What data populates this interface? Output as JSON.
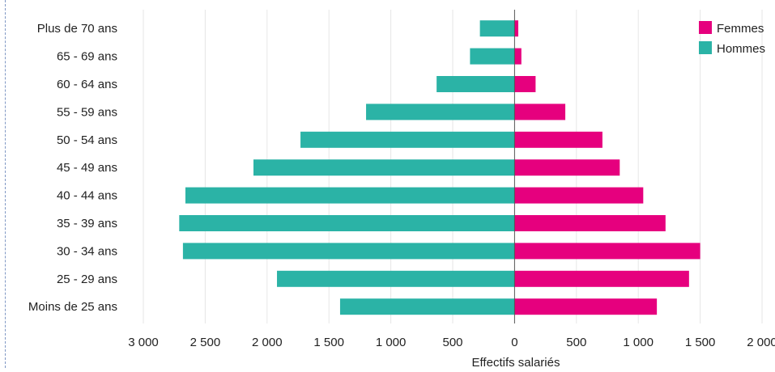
{
  "chart_data": {
    "type": "bar",
    "orientation": "horizontal-population-pyramid",
    "categories": [
      "Plus de 70 ans",
      "65 - 69 ans",
      "60 - 64 ans",
      "55 - 59 ans",
      "50 - 54 ans",
      "45 - 49 ans",
      "40 - 44 ans",
      "35 - 39 ans",
      "30 - 34 ans",
      "25 - 29 ans",
      "Moins de 25 ans"
    ],
    "series": [
      {
        "name": "Femmes",
        "color": "#e6007e",
        "values": [
          30,
          55,
          170,
          410,
          710,
          850,
          1040,
          1220,
          1500,
          1410,
          1150
        ]
      },
      {
        "name": "Hommes",
        "color": "#2bb3a6",
        "values": [
          280,
          360,
          630,
          1200,
          1730,
          2110,
          2660,
          2710,
          2680,
          1920,
          1410
        ]
      }
    ],
    "xticks": [
      "3 000",
      "2 500",
      "2 000",
      "1 500",
      "1 000",
      "500",
      "0",
      "500",
      "1 000",
      "1 500",
      "2 000"
    ],
    "xlabel": "Effectifs salariés",
    "ylabel": "",
    "xlim": [
      -3000,
      2000
    ],
    "grid": true,
    "legend": "top-right"
  }
}
